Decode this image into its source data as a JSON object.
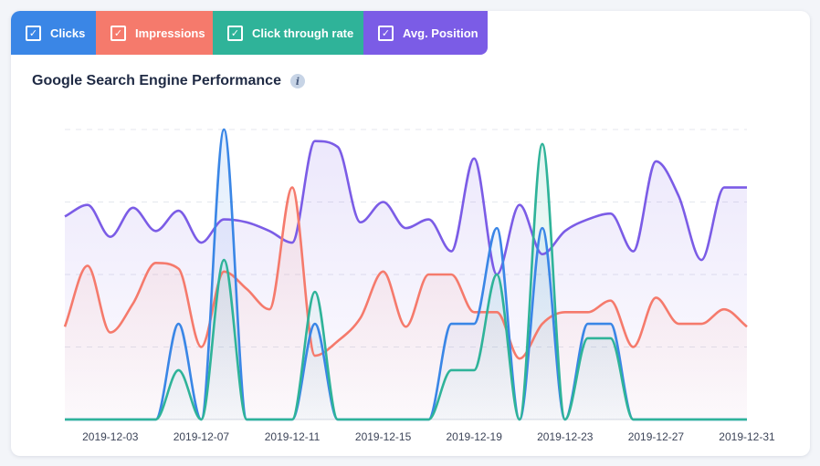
{
  "toggles": [
    {
      "label": "Clicks",
      "color": "#3a86e6",
      "checked": true
    },
    {
      "label": "Impressions",
      "color": "#f57a6c",
      "checked": true
    },
    {
      "label": "Click through rate",
      "color": "#2fb399",
      "checked": true
    },
    {
      "label": "Avg. Position",
      "color": "#7b5ce6",
      "checked": true
    }
  ],
  "chart_title": "Google Search Engine Performance",
  "info_glyph": "i",
  "chart_data": {
    "type": "area",
    "title": "Google Search Engine Performance",
    "x": [
      "2019-12-01",
      "2019-12-02",
      "2019-12-03",
      "2019-12-04",
      "2019-12-05",
      "2019-12-06",
      "2019-12-07",
      "2019-12-08",
      "2019-12-09",
      "2019-12-10",
      "2019-12-11",
      "2019-12-12",
      "2019-12-13",
      "2019-12-14",
      "2019-12-15",
      "2019-12-16",
      "2019-12-17",
      "2019-12-18",
      "2019-12-19",
      "2019-12-20",
      "2019-12-21",
      "2019-12-22",
      "2019-12-23",
      "2019-12-24",
      "2019-12-25",
      "2019-12-26",
      "2019-12-27",
      "2019-12-28",
      "2019-12-29",
      "2019-12-30",
      "2019-12-31"
    ],
    "x_tick_labels": [
      "2019-12-03",
      "2019-12-07",
      "2019-12-11",
      "2019-12-15",
      "2019-12-19",
      "2019-12-23",
      "2019-12-27",
      "2019-12-31"
    ],
    "ylim": [
      0,
      100
    ],
    "grid": true,
    "series": [
      {
        "name": "Clicks",
        "color": "#3a86e6",
        "values": [
          0,
          0,
          0,
          0,
          0,
          33,
          0,
          100,
          0,
          0,
          0,
          33,
          0,
          0,
          0,
          0,
          0,
          33,
          33,
          66,
          0,
          66,
          0,
          33,
          33,
          0,
          0,
          0,
          0,
          0,
          0
        ]
      },
      {
        "name": "Impressions",
        "color": "#f57a6c",
        "values": [
          32,
          53,
          30,
          40,
          54,
          52,
          25,
          51,
          45,
          38,
          80,
          22,
          27,
          35,
          51,
          32,
          50,
          50,
          37,
          37,
          21,
          33,
          37,
          37,
          41,
          25,
          42,
          33,
          33,
          38,
          32
        ]
      },
      {
        "name": "Click through rate",
        "color": "#2fb399",
        "values": [
          0,
          0,
          0,
          0,
          0,
          17,
          0,
          55,
          0,
          0,
          0,
          44,
          0,
          0,
          0,
          0,
          0,
          17,
          17,
          50,
          0,
          95,
          0,
          28,
          28,
          0,
          0,
          0,
          0,
          0,
          0
        ]
      },
      {
        "name": "Avg. Position",
        "color": "#7b5ce6",
        "values": [
          70,
          74,
          63,
          73,
          65,
          72,
          61,
          69,
          68,
          65,
          61,
          96,
          94,
          68,
          75,
          66,
          69,
          58,
          90,
          50,
          74,
          57,
          65,
          69,
          71,
          58,
          89,
          77,
          55,
          80,
          80
        ]
      }
    ]
  }
}
